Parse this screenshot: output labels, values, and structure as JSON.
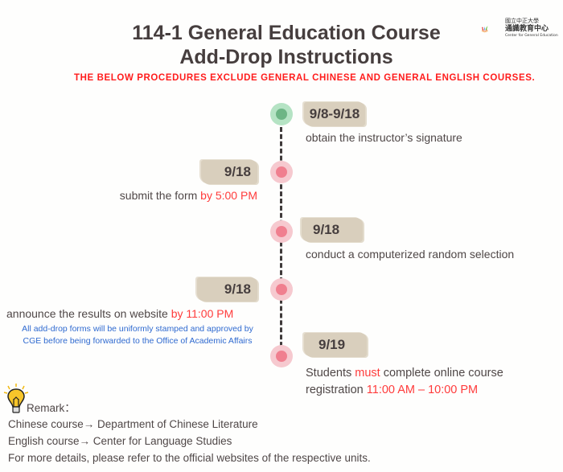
{
  "header": {
    "title_line1": "114-1 General Education Course",
    "title_line2": "Add-Drop Instructions",
    "notice": "THE BELOW PROCEDURES EXCLUDE GENERAL CHINESE AND GENERAL ENGLISH COURSES.",
    "logo": {
      "university": "國立中正大學",
      "unit": "通識教育中心",
      "unit_en": "Center for General Education"
    }
  },
  "colors": {
    "accent_red": "#ff3b3b",
    "note_blue": "#2f6ad0",
    "date_bg": "#d9cfbd",
    "dot_pink": "#f07f8f",
    "dot_green": "#6db585"
  },
  "timeline": [
    {
      "date": "9/8-9/18",
      "text": "obtain the instructor’s signature",
      "status": "current"
    },
    {
      "date": "9/18",
      "text": "submit the form ",
      "highlight": "by 5:00 PM"
    },
    {
      "date": "9/18",
      "text": "conduct a computerized random selection"
    },
    {
      "date": "9/18",
      "text": "announce the results on  website ",
      "highlight": "by 11:00 PM",
      "note_line1": "All add-drop forms will be uniformly stamped and approved by",
      "note_line2": "CGE before being forwarded to the Office of Academic Affairs"
    },
    {
      "date": "9/19",
      "text_a": "Students ",
      "highlight_a": "must",
      "text_b": " complete online course",
      "text_c": "registration ",
      "highlight_c": "11:00 AM – 10:00 PM"
    }
  ],
  "remark": {
    "label": "Remark：",
    "lines": [
      "Chinese course→ Department of Chinese Literature",
      "English course→ Center for Language Studies",
      "For more details, please refer to the official websites of the respective units."
    ]
  }
}
